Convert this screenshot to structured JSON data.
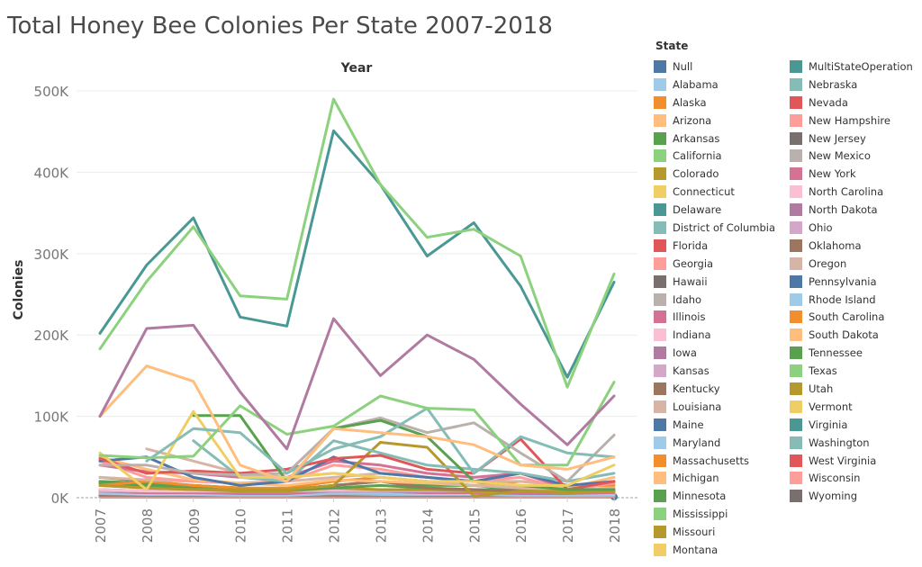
{
  "chart_data": {
    "type": "line",
    "title": "Total Honey Bee Colonies Per State 2007-2018",
    "xlabel": "Year",
    "ylabel": "Colonies",
    "x": [
      2007,
      2008,
      2009,
      2010,
      2011,
      2012,
      2013,
      2014,
      2015,
      2016,
      2017,
      2018
    ],
    "ylim": [
      0,
      500000
    ],
    "yticks": [
      0,
      100000,
      200000,
      300000,
      400000,
      500000
    ],
    "ytick_labels": [
      "0K",
      "100K",
      "200K",
      "300K",
      "400K",
      "500K"
    ],
    "legend_title": "State",
    "legend_position": "right",
    "series": [
      {
        "name": "Null",
        "color": "#4e79a7",
        "values": [
          null,
          null,
          null,
          null,
          null,
          null,
          null,
          null,
          null,
          null,
          null,
          1000
        ]
      },
      {
        "name": "Alabama",
        "color": "#a0cbe8",
        "values": [
          5000,
          4000,
          4000,
          3000,
          3000,
          5000,
          4000,
          4000,
          4000,
          3000,
          3000,
          3000
        ]
      },
      {
        "name": "Alaska",
        "color": "#f28e2b",
        "values": [
          1000,
          1000,
          1000,
          1000,
          1000,
          1000,
          1000,
          1000,
          1000,
          1000,
          1000,
          1000
        ]
      },
      {
        "name": "Arizona",
        "color": "#ffbe7d",
        "values": [
          50000,
          35000,
          22000,
          18000,
          15000,
          22000,
          20000,
          18000,
          15000,
          14000,
          12000,
          25000
        ]
      },
      {
        "name": "Arkansas",
        "color": "#59a14f",
        "values": [
          20000,
          18000,
          15000,
          12000,
          10000,
          15000,
          20000,
          15000,
          15000,
          10000,
          8000,
          10000
        ]
      },
      {
        "name": "California",
        "color": "#8cd17d",
        "values": [
          183000,
          266000,
          333000,
          248000,
          244000,
          490000,
          385000,
          320000,
          330000,
          297000,
          136000,
          275000
        ]
      },
      {
        "name": "Colorado",
        "color": "#b6992d",
        "values": [
          15000,
          12000,
          10000,
          8000,
          8000,
          12000,
          10000,
          10000,
          8000,
          8000,
          6000,
          8000
        ]
      },
      {
        "name": "Connecticut",
        "color": "#f1ce63",
        "values": [
          3000,
          3000,
          3000,
          3000,
          3000,
          3000,
          3000,
          3000,
          3000,
          3000,
          3000,
          3000
        ]
      },
      {
        "name": "Delaware",
        "color": "#499894",
        "values": [
          1000,
          1000,
          1000,
          1000,
          1000,
          1000,
          1000,
          1000,
          1000,
          1000,
          1000,
          1000
        ]
      },
      {
        "name": "District of Columbia",
        "color": "#86bcb6",
        "values": [
          null,
          null,
          null,
          null,
          null,
          null,
          null,
          null,
          null,
          null,
          null,
          null
        ]
      },
      {
        "name": "Florida",
        "color": "#e15759",
        "values": [
          48000,
          30000,
          33000,
          30000,
          35000,
          48000,
          52000,
          35000,
          30000,
          72000,
          10000,
          20000
        ]
      },
      {
        "name": "Georgia",
        "color": "#ff9d9a",
        "values": [
          45000,
          25000,
          20000,
          18000,
          20000,
          40000,
          35000,
          25000,
          20000,
          25000,
          10000,
          18000
        ]
      },
      {
        "name": "Hawaii",
        "color": "#79706e",
        "values": [
          10000,
          8000,
          8000,
          8000,
          8000,
          10000,
          10000,
          10000,
          10000,
          8000,
          8000,
          8000
        ]
      },
      {
        "name": "Idaho",
        "color": "#bab0ac",
        "values": [
          40000,
          40000,
          30000,
          28000,
          30000,
          85000,
          98000,
          80000,
          92000,
          55000,
          20000,
          77000
        ]
      },
      {
        "name": "Illinois",
        "color": "#d37295",
        "values": [
          8000,
          6000,
          6000,
          5000,
          5000,
          8000,
          8000,
          6000,
          6000,
          5000,
          5000,
          6000
        ]
      },
      {
        "name": "Indiana",
        "color": "#fabfd2",
        "values": [
          6000,
          5000,
          5000,
          5000,
          5000,
          6000,
          6000,
          5000,
          5000,
          5000,
          5000,
          5000
        ]
      },
      {
        "name": "Iowa",
        "color": "#b07aa1",
        "values": [
          100000,
          208000,
          212000,
          130000,
          60000,
          220000,
          150000,
          200000,
          170000,
          115000,
          65000,
          125000
        ]
      },
      {
        "name": "Kansas",
        "color": "#d4a6c8",
        "values": [
          5000,
          5000,
          5000,
          5000,
          5000,
          5000,
          5000,
          5000,
          5000,
          5000,
          5000,
          5000
        ]
      },
      {
        "name": "Kentucky",
        "color": "#9d7660",
        "values": [
          25000,
          20000,
          15000,
          12000,
          10000,
          15000,
          20000,
          12000,
          10000,
          8000,
          8000,
          10000
        ]
      },
      {
        "name": "Louisiana",
        "color": "#d7b5a6",
        "values": [
          null,
          60000,
          45000,
          30000,
          25000,
          30000,
          25000,
          20000,
          15000,
          12000,
          10000,
          12000
        ]
      },
      {
        "name": "Maine",
        "color": "#4e79a7",
        "values": [
          5000,
          5000,
          5000,
          5000,
          5000,
          5000,
          5000,
          5000,
          5000,
          5000,
          5000,
          5000
        ]
      },
      {
        "name": "Maryland",
        "color": "#a0cbe8",
        "values": [
          6000,
          6000,
          6000,
          6000,
          6000,
          6000,
          6000,
          6000,
          6000,
          6000,
          6000,
          6000
        ]
      },
      {
        "name": "Massachusetts",
        "color": "#f28e2b",
        "values": [
          null,
          null,
          null,
          null,
          null,
          null,
          null,
          null,
          null,
          null,
          null,
          null
        ]
      },
      {
        "name": "Michigan",
        "color": "#ffbe7d",
        "values": [
          100000,
          162000,
          143000,
          40000,
          20000,
          85000,
          80000,
          75000,
          65000,
          40000,
          35000,
          50000
        ]
      },
      {
        "name": "Minnesota",
        "color": "#59a14f",
        "values": [
          null,
          null,
          101000,
          101000,
          20000,
          85000,
          95000,
          75000,
          20000,
          15000,
          10000,
          10000
        ]
      },
      {
        "name": "Mississippi",
        "color": "#8cd17d",
        "values": [
          52000,
          49000,
          51000,
          113000,
          78000,
          88000,
          125000,
          110000,
          108000,
          40000,
          40000,
          142000
        ]
      },
      {
        "name": "Missouri",
        "color": "#b6992d",
        "values": [
          15000,
          12000,
          10000,
          10000,
          10000,
          15000,
          68000,
          62000,
          2000,
          8000,
          8000,
          8000
        ]
      },
      {
        "name": "Montana",
        "color": "#f1ce63",
        "values": [
          55000,
          10000,
          106000,
          25000,
          25000,
          30000,
          25000,
          20000,
          20000,
          15000,
          15000,
          40000
        ]
      },
      {
        "name": "MultiStateOperation",
        "color": "#499894",
        "values": [
          202000,
          286000,
          344000,
          222000,
          211000,
          451000,
          385000,
          297000,
          338000,
          260000,
          148000,
          265000
        ]
      },
      {
        "name": "Nebraska",
        "color": "#86bcb6",
        "values": [
          null,
          45000,
          85000,
          80000,
          30000,
          60000,
          75000,
          110000,
          30000,
          75000,
          55000,
          50000
        ]
      },
      {
        "name": "Nevada",
        "color": "#e15759",
        "values": [
          3000,
          3000,
          3000,
          3000,
          3000,
          3000,
          3000,
          3000,
          3000,
          3000,
          3000,
          3000
        ]
      },
      {
        "name": "New Hampshire",
        "color": "#ff9d9a",
        "values": [
          2000,
          2000,
          2000,
          2000,
          2000,
          2000,
          2000,
          2000,
          2000,
          2000,
          2000,
          2000
        ]
      },
      {
        "name": "New Jersey",
        "color": "#79706e",
        "values": [
          8000,
          8000,
          8000,
          8000,
          8000,
          8000,
          8000,
          8000,
          8000,
          8000,
          8000,
          8000
        ]
      },
      {
        "name": "New Mexico",
        "color": "#bab0ac",
        "values": [
          5000,
          5000,
          5000,
          5000,
          5000,
          5000,
          5000,
          5000,
          5000,
          5000,
          5000,
          5000
        ]
      },
      {
        "name": "New York",
        "color": "#d37295",
        "values": [
          40000,
          32000,
          30000,
          25000,
          25000,
          45000,
          40000,
          30000,
          25000,
          30000,
          12000,
          20000
        ]
      },
      {
        "name": "North Carolina",
        "color": "#fabfd2",
        "values": [
          10000,
          8000,
          8000,
          8000,
          8000,
          10000,
          10000,
          10000,
          8000,
          8000,
          8000,
          8000
        ]
      },
      {
        "name": "North Dakota",
        "color": "#b07aa1",
        "values": [
          null,
          null,
          null,
          null,
          null,
          null,
          null,
          null,
          null,
          null,
          null,
          null
        ]
      },
      {
        "name": "Ohio",
        "color": "#d4a6c8",
        "values": [
          8000,
          8000,
          8000,
          8000,
          8000,
          8000,
          8000,
          8000,
          8000,
          8000,
          8000,
          8000
        ]
      },
      {
        "name": "Oklahoma",
        "color": "#9d7660",
        "values": [
          3000,
          3000,
          3000,
          3000,
          3000,
          3000,
          3000,
          3000,
          3000,
          3000,
          3000,
          3000
        ]
      },
      {
        "name": "Oregon",
        "color": "#d7b5a6",
        "values": [
          25000,
          22000,
          20000,
          18000,
          20000,
          25000,
          30000,
          25000,
          20000,
          20000,
          15000,
          18000
        ]
      },
      {
        "name": "Pennsylvania",
        "color": "#4e79a7",
        "values": [
          45000,
          50000,
          25000,
          15000,
          20000,
          50000,
          30000,
          25000,
          20000,
          30000,
          15000,
          20000
        ]
      },
      {
        "name": "Rhode Island",
        "color": "#a0cbe8",
        "values": [
          null,
          null,
          null,
          null,
          null,
          null,
          null,
          null,
          null,
          null,
          null,
          null
        ]
      },
      {
        "name": "South Carolina",
        "color": "#f28e2b",
        "values": [
          15000,
          20000,
          15000,
          12000,
          12000,
          20000,
          25000,
          20000,
          15000,
          20000,
          15000,
          15000
        ]
      },
      {
        "name": "South Dakota",
        "color": "#ffbe7d",
        "values": [
          null,
          null,
          null,
          null,
          null,
          null,
          null,
          null,
          null,
          null,
          null,
          null
        ]
      },
      {
        "name": "Tennessee",
        "color": "#59a14f",
        "values": [
          18000,
          15000,
          12000,
          10000,
          10000,
          12000,
          15000,
          12000,
          10000,
          10000,
          8000,
          10000
        ]
      },
      {
        "name": "Texas",
        "color": "#8cd17d",
        "values": [
          null,
          null,
          null,
          null,
          null,
          null,
          null,
          null,
          null,
          null,
          null,
          null
        ]
      },
      {
        "name": "Utah",
        "color": "#b6992d",
        "values": [
          null,
          null,
          null,
          null,
          null,
          null,
          null,
          null,
          null,
          null,
          null,
          null
        ]
      },
      {
        "name": "Vermont",
        "color": "#f1ce63",
        "values": [
          null,
          null,
          null,
          null,
          null,
          null,
          null,
          null,
          null,
          null,
          null,
          null
        ]
      },
      {
        "name": "Virginia",
        "color": "#499894",
        "values": [
          null,
          null,
          null,
          null,
          null,
          null,
          null,
          null,
          null,
          null,
          null,
          null
        ]
      },
      {
        "name": "Washington",
        "color": "#86bcb6",
        "values": [
          null,
          null,
          70000,
          25000,
          20000,
          70000,
          55000,
          40000,
          35000,
          30000,
          20000,
          30000
        ]
      },
      {
        "name": "West Virginia",
        "color": "#e15759",
        "values": [
          null,
          null,
          null,
          null,
          null,
          null,
          null,
          null,
          null,
          null,
          null,
          null
        ]
      },
      {
        "name": "Wisconsin",
        "color": "#ff9d9a",
        "values": [
          null,
          null,
          null,
          null,
          null,
          null,
          null,
          null,
          null,
          null,
          null,
          null
        ]
      },
      {
        "name": "Wyoming",
        "color": "#79706e",
        "values": [
          null,
          null,
          null,
          null,
          null,
          null,
          null,
          null,
          null,
          null,
          null,
          null
        ]
      }
    ]
  }
}
